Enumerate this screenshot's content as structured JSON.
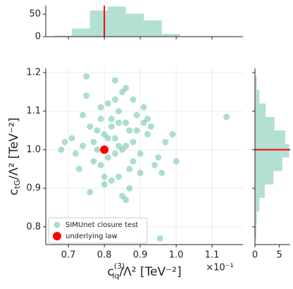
{
  "chart_data": [
    {
      "type": "scatter",
      "xlabel": {
        "base": "c",
        "sup": "(3)",
        "sub": "lq",
        "rest": "/Λ² [TeV⁻²]"
      },
      "ylabel": {
        "base": "c",
        "sub": "tG",
        "rest": "/Λ² [TeV⁻²]"
      },
      "x_offset_label": "×10⁻¹",
      "xlim": [
        0.637,
        1.186
      ],
      "xticks": [
        0.7,
        0.8,
        0.9,
        {
          "value": 1.0,
          "label": "1.0"
        },
        1.1
      ],
      "ylim": [
        0.754,
        1.211
      ],
      "yticks": [
        0.8,
        0.9,
        {
          "value": 1.0,
          "label": "1.0"
        },
        1.1,
        1.2
      ],
      "grid": true,
      "legend": "lower left",
      "series": [
        {
          "name": "SIMUnet closure test",
          "color": "#66c2a5",
          "x": [
            0.83,
            0.78,
            0.88,
            0.81,
            0.86,
            0.74,
            0.92,
            0.84,
            0.79,
            0.9,
            0.76,
            0.85,
            0.82,
            0.87,
            0.8,
            0.93,
            0.77,
            0.89,
            0.83,
            0.71,
            0.95,
            0.84,
            0.81,
            0.86,
            0.73,
            0.91,
            0.88,
            0.79,
            0.85,
            0.82,
            0.97,
            0.75,
            0.87,
            0.8,
            0.84,
            0.9,
            0.78,
            0.83,
            0.69,
            0.99,
            0.86,
            0.82,
            0.76,
            0.94,
            0.81,
            0.88,
            0.85,
            0.72,
            0.92,
            0.79,
            1.0,
            0.84,
            0.87,
            0.77,
            0.89,
            0.83,
            0.68,
            1.14,
            0.955,
            0.75,
            0.96,
            0.8,
            0.74,
            0.91,
            0.86
          ],
          "values": [
            1.03,
            1.05,
            1.02,
            0.98,
            1.07,
            1.01,
            1.04,
            1.1,
            0.96,
            0.99,
            1.06,
            1.0,
            1.08,
            0.95,
            1.04,
            1.06,
            0.97,
            1.09,
            1.13,
            1.03,
            0.98,
            0.93,
            1.12,
            1.01,
            0.95,
            1.11,
            0.97,
            1.08,
            1.15,
            0.92,
            1.02,
            1.14,
            1.05,
            0.91,
            1.07,
            0.94,
            1.0,
            0.99,
            1.02,
            1.04,
            1.16,
            1.06,
            0.89,
            0.96,
            1.03,
            1.13,
            0.88,
            0.99,
            1.08,
            1.11,
            0.97,
            1.01,
            0.9,
            1.02,
            1.05,
            1.18,
            1.0,
            1.085,
            0.77,
            1.19,
            0.94,
            0.93,
            1.09,
            1.07,
            0.87
          ]
        },
        {
          "name": "underlying law",
          "color": "#ff0000",
          "x": [
            0.8
          ],
          "values": [
            1.0
          ]
        }
      ]
    },
    {
      "type": "histogram",
      "orientation": "vertical",
      "color": "#66c2a5",
      "bins": [
        0.66,
        0.71,
        0.76,
        0.81,
        0.86,
        0.91,
        0.96,
        1.01,
        1.06,
        1.11,
        1.16
      ],
      "values": [
        2,
        18,
        58,
        67,
        51,
        36,
        6,
        1,
        1,
        1
      ],
      "xlim": [
        0.637,
        1.186
      ],
      "xticks": [
        0.7,
        0.8,
        0.9,
        1.0,
        1.1
      ],
      "ylim": [
        0,
        69
      ],
      "yticks": [
        0,
        50
      ],
      "reference": 0.8,
      "reference_color": "#ff0000"
    },
    {
      "type": "histogram",
      "orientation": "horizontal",
      "color": "#66c2a5",
      "bins": [
        0.77,
        0.805,
        0.84,
        0.875,
        0.91,
        0.945,
        0.98,
        1.015,
        1.05,
        1.085,
        1.12,
        1.155,
        1.19
      ],
      "values": [
        0.3,
        0.4,
        0.9,
        2.0,
        3.8,
        5.6,
        7.0,
        6.2,
        4.0,
        2.2,
        0.9,
        0.4
      ],
      "xlim": [
        0,
        7.5
      ],
      "xticks": [
        0,
        5
      ],
      "ylim": [
        0.754,
        1.211
      ],
      "yticks": [
        0.8,
        0.9,
        1.0,
        1.1,
        1.2
      ],
      "reference": 1.0,
      "reference_color": "#ff0000"
    }
  ]
}
